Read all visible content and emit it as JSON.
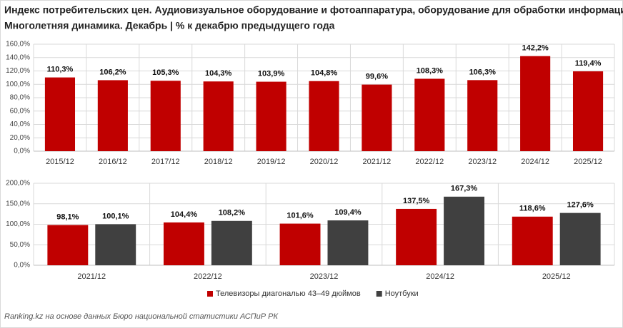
{
  "header": {
    "title": "Индекс потребительских цен. Аудиовизуальное оборудование и фотоаппаратура, оборудование для обработки информации.",
    "subtitle": "Многолетняя динамика. Декабрь | % к декабрю предыдущего года"
  },
  "source": "Ranking.kz на основе данных Бюро национальной статистики АСПиР РК",
  "chart_data": [
    {
      "type": "bar",
      "categories": [
        "2015/12",
        "2016/12",
        "2017/12",
        "2018/12",
        "2019/12",
        "2020/12",
        "2021/12",
        "2022/12",
        "2023/12",
        "2024/12",
        "2025/12"
      ],
      "values": [
        110.3,
        106.2,
        105.3,
        104.3,
        103.9,
        104.8,
        99.6,
        108.3,
        106.3,
        142.2,
        119.4
      ],
      "value_labels": [
        "110,3%",
        "106,2%",
        "105,3%",
        "104,3%",
        "103,9%",
        "104,8%",
        "99,6%",
        "108,3%",
        "106,3%",
        "142,2%",
        "119,4%"
      ],
      "color": "#c00000",
      "ylim": [
        0,
        160
      ],
      "yticks": [
        {
          "value": 0,
          "label": "0,0%"
        },
        {
          "value": 20,
          "label": "20,0%"
        },
        {
          "value": 40,
          "label": "40,0%"
        },
        {
          "value": 60,
          "label": "60,0%"
        },
        {
          "value": 80,
          "label": "80,0%"
        },
        {
          "value": 100,
          "label": "100,0%"
        },
        {
          "value": 120,
          "label": "120,0%"
        },
        {
          "value": 140,
          "label": "140,0%"
        },
        {
          "value": 160,
          "label": "160,0%"
        }
      ],
      "grid": true
    },
    {
      "type": "bar",
      "categories": [
        "2021/12",
        "2022/12",
        "2023/12",
        "2024/12",
        "2025/12"
      ],
      "series": [
        {
          "name": "Телевизоры диагональю 43–49 дюймов",
          "color": "#c00000",
          "values": [
            98.1,
            104.4,
            101.6,
            137.5,
            118.6
          ],
          "value_labels": [
            "98,1%",
            "104,4%",
            "101,6%",
            "137,5%",
            "118,6%"
          ]
        },
        {
          "name": "Ноутбуки",
          "color": "#404040",
          "values": [
            100.1,
            108.2,
            109.4,
            167.3,
            127.6
          ],
          "value_labels": [
            "100,1%",
            "108,2%",
            "109,4%",
            "167,3%",
            "127,6%"
          ]
        }
      ],
      "ylim": [
        0,
        200
      ],
      "yticks": [
        {
          "value": 0,
          "label": "0,0%"
        },
        {
          "value": 50,
          "label": "50,0%"
        },
        {
          "value": 100,
          "label": "100,0%"
        },
        {
          "value": 150,
          "label": "150,0%"
        },
        {
          "value": 200,
          "label": "200,0%"
        }
      ],
      "grid": true,
      "legend": "bottom"
    }
  ]
}
